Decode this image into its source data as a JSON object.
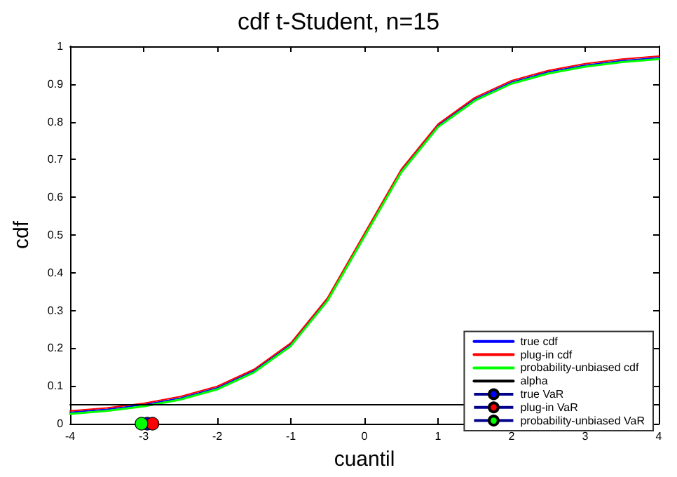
{
  "chart_data": {
    "type": "line",
    "title": "cdf t-Student, n=15",
    "xlabel": "cuantil",
    "ylabel": "cdf",
    "xlim": [
      -4,
      4
    ],
    "ylim": [
      0,
      1
    ],
    "xticks": [
      -4,
      -3,
      -2,
      -1,
      0,
      1,
      2,
      3,
      4
    ],
    "yticks": [
      0,
      0.1,
      0.2,
      0.3,
      0.4,
      0.5,
      0.6,
      0.7,
      0.8,
      0.9,
      1
    ],
    "x": [
      -4,
      -3.5,
      -3,
      -2.5,
      -2,
      -1.5,
      -1,
      -0.5,
      0,
      0.5,
      1,
      1.5,
      2,
      2.5,
      3,
      3.5,
      4
    ],
    "grid": false,
    "legend": "bottom right",
    "marker": "none",
    "line_style": "solid",
    "series": [
      {
        "name": "true cdf",
        "color": "#0000ff",
        "values": [
          0.03,
          0.038,
          0.05,
          0.068,
          0.095,
          0.14,
          0.21,
          0.33,
          0.5,
          0.67,
          0.79,
          0.86,
          0.905,
          0.932,
          0.95,
          0.962,
          0.97
        ]
      },
      {
        "name": "plug-in cdf",
        "color": "#ff0000",
        "values": [
          0.034,
          0.042,
          0.054,
          0.072,
          0.099,
          0.144,
          0.214,
          0.334,
          0.504,
          0.674,
          0.794,
          0.864,
          0.909,
          0.936,
          0.954,
          0.966,
          0.974
        ]
      },
      {
        "name": "probability-unbiased cdf",
        "color": "#00ff00",
        "values": [
          0.026,
          0.034,
          0.046,
          0.064,
          0.091,
          0.136,
          0.206,
          0.326,
          0.496,
          0.666,
          0.786,
          0.856,
          0.901,
          0.928,
          0.946,
          0.958,
          0.966
        ]
      },
      {
        "name": "alpha",
        "color": "#000000",
        "x": [
          -4,
          4
        ],
        "values": [
          0.05,
          0.05
        ]
      },
      {
        "name": "true VaR",
        "color": "#0000ff",
        "type": "scatter",
        "marker": "circle",
        "x": [
          -2.95
        ],
        "values": [
          0
        ]
      },
      {
        "name": "plug-in VaR",
        "color": "#ff0000",
        "type": "scatter",
        "marker": "circle",
        "x": [
          -2.88
        ],
        "values": [
          0
        ]
      },
      {
        "name": "probability-unbiased VaR",
        "color": "#00ff00",
        "type": "scatter",
        "marker": "circle",
        "x": [
          -3.03
        ],
        "values": [
          0
        ]
      }
    ]
  }
}
